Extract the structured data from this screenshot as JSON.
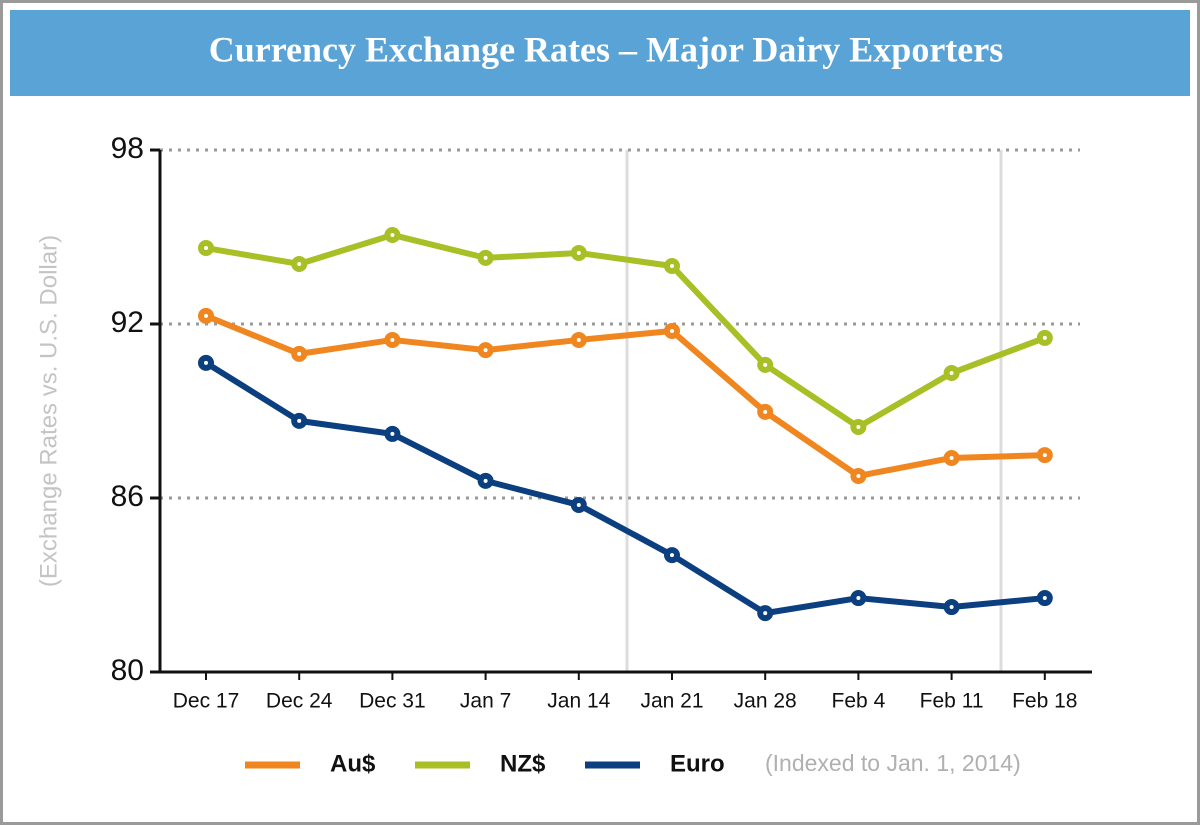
{
  "chart_data": {
    "type": "line",
    "title": "Currency Exchange Rates – Major Dairy Exporters",
    "y_label": "(Exchange Rates vs. U.S. Dollar)",
    "note": "(Indexed to Jan. 1, 2014)",
    "categories": [
      "Dec 17",
      "Dec 24",
      "Dec 31",
      "Jan 7",
      "Jan 14",
      "Jan 21",
      "Jan 28",
      "Feb 4",
      "Feb 11",
      "Feb 18"
    ],
    "series": [
      {
        "name": "Au$",
        "color": "#f0861f",
        "values": [
          92.28,
          90.97,
          91.45,
          91.1,
          91.45,
          91.76,
          88.97,
          86.76,
          87.38,
          87.48
        ]
      },
      {
        "name": "NZ$",
        "color": "#a8bf26",
        "values": [
          94.62,
          94.07,
          95.07,
          94.28,
          94.45,
          94.0,
          90.59,
          88.45,
          90.31,
          91.52
        ]
      },
      {
        "name": "Euro",
        "color": "#0c3f7f",
        "values": [
          90.66,
          88.66,
          88.21,
          86.59,
          85.76,
          84.03,
          82.03,
          82.55,
          82.24,
          82.55
        ]
      }
    ],
    "ylim": [
      80,
      98
    ],
    "yticks": [
      80,
      86,
      92,
      98
    ],
    "grid": true
  }
}
